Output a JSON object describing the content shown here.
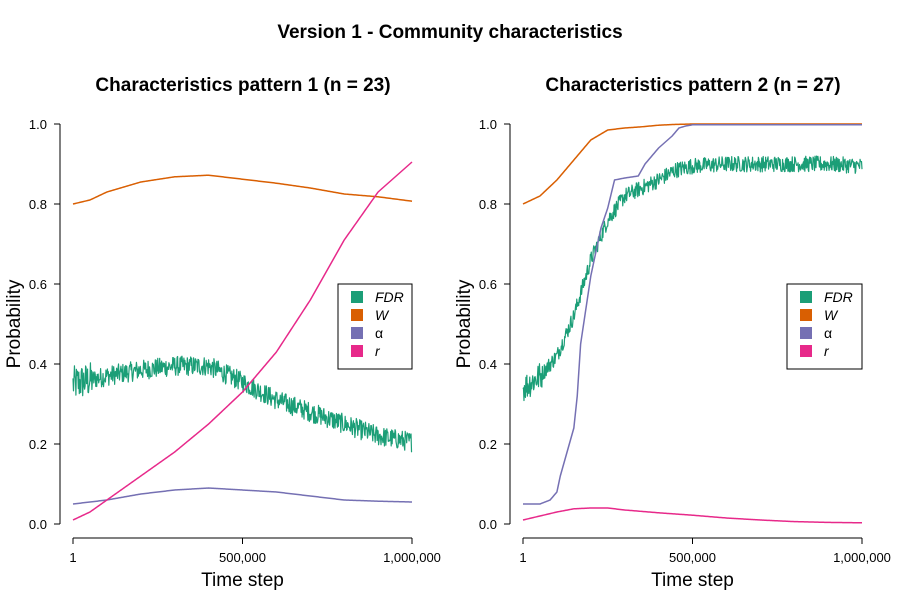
{
  "figure": {
    "title": "Version 1 - Community characteristics"
  },
  "chart_data": [
    {
      "type": "line",
      "title": "Characteristics pattern 1 (n = 23)",
      "xlabel": "Time step",
      "ylabel": "Probability",
      "xlim": [
        1,
        1000000
      ],
      "ylim": [
        0,
        1
      ],
      "xticks": [
        1,
        500000,
        1000000
      ],
      "xtick_labels": [
        "1",
        "500,000",
        "1,000,000"
      ],
      "yticks": [
        0,
        0.2,
        0.4,
        0.6,
        0.8,
        1.0
      ],
      "ytick_labels": [
        "0.0",
        "0.2",
        "0.4",
        "0.6",
        "0.8",
        "1.0"
      ],
      "grid": false,
      "legend_position": "right",
      "series": [
        {
          "name": "FDR",
          "italic": true,
          "color": "#1b9e77",
          "noise": 0.025,
          "x": [
            1,
            50000,
            100000,
            200000,
            300000,
            400000,
            500000,
            600000,
            700000,
            800000,
            900000,
            1000000
          ],
          "y": [
            0.35,
            0.36,
            0.37,
            0.385,
            0.395,
            0.395,
            0.355,
            0.31,
            0.28,
            0.25,
            0.22,
            0.205
          ]
        },
        {
          "name": "W",
          "italic": true,
          "color": "#d95f02",
          "noise": 0,
          "x": [
            1,
            50000,
            100000,
            200000,
            300000,
            400000,
            500000,
            600000,
            700000,
            800000,
            900000,
            1000000
          ],
          "y": [
            0.8,
            0.81,
            0.83,
            0.855,
            0.868,
            0.872,
            0.862,
            0.852,
            0.84,
            0.825,
            0.818,
            0.807
          ]
        },
        {
          "name": "α",
          "italic": false,
          "color": "#7570b3",
          "noise": 0,
          "x": [
            1,
            100000,
            200000,
            300000,
            400000,
            500000,
            600000,
            700000,
            800000,
            900000,
            1000000
          ],
          "y": [
            0.05,
            0.06,
            0.075,
            0.085,
            0.09,
            0.085,
            0.08,
            0.07,
            0.06,
            0.057,
            0.055
          ]
        },
        {
          "name": "r",
          "italic": true,
          "color": "#e7298a",
          "noise": 0,
          "x": [
            1,
            50000,
            100000,
            200000,
            300000,
            400000,
            500000,
            600000,
            700000,
            800000,
            900000,
            1000000
          ],
          "y": [
            0.01,
            0.03,
            0.06,
            0.12,
            0.18,
            0.25,
            0.33,
            0.43,
            0.56,
            0.71,
            0.83,
            0.905
          ]
        }
      ]
    },
    {
      "type": "line",
      "title": "Characteristics pattern 2 (n = 27)",
      "xlabel": "Time step",
      "ylabel": "Probability",
      "xlim": [
        1,
        1000000
      ],
      "ylim": [
        0,
        1
      ],
      "xticks": [
        1,
        500000,
        1000000
      ],
      "xtick_labels": [
        "1",
        "500,000",
        "1,000,000"
      ],
      "yticks": [
        0,
        0.2,
        0.4,
        0.6,
        0.8,
        1.0
      ],
      "ytick_labels": [
        "0.0",
        "0.2",
        "0.4",
        "0.6",
        "0.8",
        "1.0"
      ],
      "grid": false,
      "legend_position": "right",
      "series": [
        {
          "name": "FDR",
          "italic": true,
          "color": "#1b9e77",
          "noise": 0.02,
          "x": [
            1,
            50000,
            100000,
            150000,
            200000,
            250000,
            300000,
            350000,
            400000,
            450000,
            500000,
            600000,
            700000,
            800000,
            900000,
            1000000
          ],
          "y": [
            0.34,
            0.37,
            0.42,
            0.52,
            0.66,
            0.76,
            0.82,
            0.84,
            0.86,
            0.885,
            0.895,
            0.9,
            0.9,
            0.9,
            0.9,
            0.895
          ]
        },
        {
          "name": "W",
          "italic": true,
          "color": "#d95f02",
          "noise": 0,
          "x": [
            1,
            50000,
            100000,
            150000,
            200000,
            250000,
            300000,
            350000,
            400000,
            450000,
            500000,
            600000,
            700000,
            800000,
            900000,
            1000000
          ],
          "y": [
            0.8,
            0.82,
            0.86,
            0.91,
            0.96,
            0.985,
            0.99,
            0.993,
            0.997,
            0.999,
            1.0,
            1.0,
            1.0,
            1.0,
            1.0,
            1.0
          ]
        },
        {
          "name": "α",
          "italic": false,
          "color": "#7570b3",
          "noise": 0,
          "x": [
            1,
            50000,
            80000,
            100000,
            110000,
            130000,
            150000,
            160000,
            170000,
            200000,
            230000,
            250000,
            270000,
            300000,
            340000,
            360000,
            380000,
            400000,
            420000,
            440000,
            460000,
            480000,
            500000,
            1000000
          ],
          "y": [
            0.05,
            0.05,
            0.06,
            0.08,
            0.12,
            0.18,
            0.24,
            0.32,
            0.45,
            0.62,
            0.74,
            0.79,
            0.86,
            0.865,
            0.87,
            0.9,
            0.92,
            0.94,
            0.955,
            0.97,
            0.99,
            0.995,
            0.998,
            0.998
          ]
        },
        {
          "name": "r",
          "italic": true,
          "color": "#e7298a",
          "noise": 0,
          "x": [
            1,
            50000,
            100000,
            150000,
            200000,
            250000,
            300000,
            400000,
            500000,
            600000,
            700000,
            800000,
            900000,
            1000000
          ],
          "y": [
            0.01,
            0.02,
            0.03,
            0.038,
            0.04,
            0.04,
            0.035,
            0.028,
            0.022,
            0.015,
            0.01,
            0.006,
            0.004,
            0.003
          ]
        }
      ]
    }
  ]
}
